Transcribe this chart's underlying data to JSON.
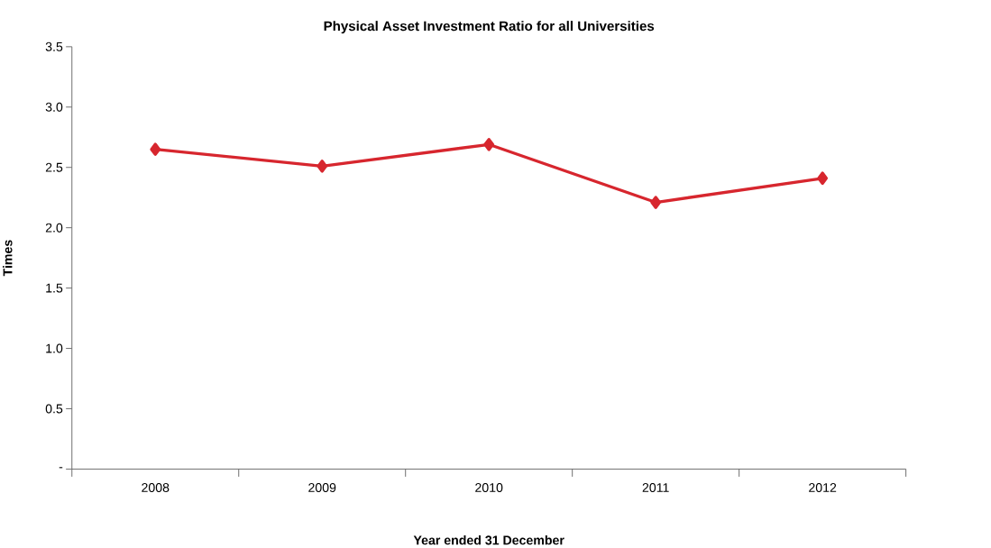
{
  "chart_data": {
    "type": "line",
    "title": "Physical Asset Investment Ratio for all Universities",
    "xlabel": "Year ended 31 December",
    "ylabel": "Times",
    "categories": [
      "2008",
      "2009",
      "2010",
      "2011",
      "2012"
    ],
    "series": [
      {
        "color": "#d7262e",
        "values": [
          2.65,
          2.51,
          2.69,
          2.21,
          2.41
        ]
      }
    ],
    "ylim": [
      0,
      3.5
    ],
    "yticks": [
      {
        "value": 0,
        "label": "-"
      },
      0.5,
      {
        "value": 1,
        "label": "1.0"
      },
      1.5,
      {
        "value": 2,
        "label": "2.0"
      },
      2.5,
      {
        "value": 3,
        "label": "3.0"
      },
      3.5
    ],
    "marker": "diamond",
    "line_style": "solid",
    "grid": false,
    "legend": false
  }
}
